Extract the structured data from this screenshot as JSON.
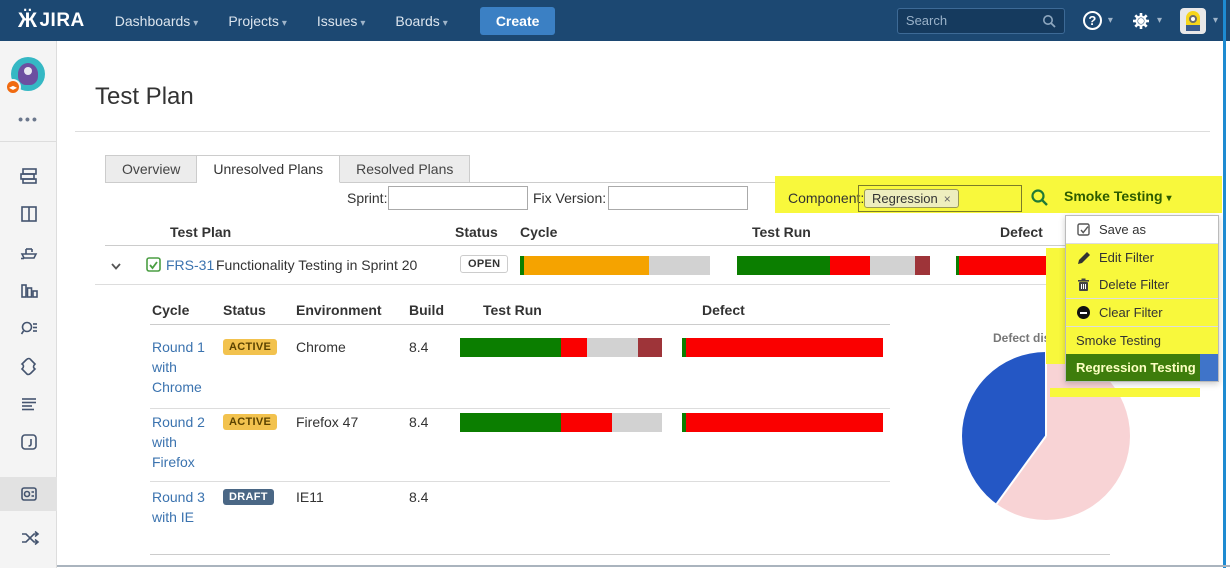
{
  "colors": {
    "nav_bg": "#1c4872",
    "create_btn": "#3b80c4",
    "link": "#3b73af",
    "highlight_yellow": "#f8f83c",
    "menu_selected_green": "#3e7d0c",
    "menu_selected_blue_remnant": "#3f74c9",
    "bar_green": "#0b7e00",
    "bar_red": "#fa0000",
    "bar_gray": "#d2d2d2",
    "bar_maroon": "#9e3439",
    "bar_orange": "#f5a300",
    "pie_blue": "#2457c5",
    "pie_pink": "#f8d3d5",
    "badge_active_bg": "#f2c24e",
    "badge_draft_bg": "#4a6785"
  },
  "topnav": {
    "logo_text": "JIRA",
    "menu": [
      {
        "label": "Dashboards"
      },
      {
        "label": "Projects"
      },
      {
        "label": "Issues"
      },
      {
        "label": "Boards"
      }
    ],
    "create_label": "Create",
    "search_placeholder": "Search"
  },
  "sidebar": {
    "icon_names": [
      "project-avatar",
      "more-ellipsis",
      "backlog",
      "board",
      "releases",
      "reports",
      "issues-search",
      "add-ons",
      "list",
      "pages",
      "test-sessions-selected",
      "shuffle",
      "media"
    ]
  },
  "page": {
    "title": "Test Plan"
  },
  "tabs": [
    {
      "label": "Overview",
      "active": false
    },
    {
      "label": "Unresolved Plans",
      "active": true
    },
    {
      "label": "Resolved Plans",
      "active": false
    }
  ],
  "filters": {
    "sprint_label": "Sprint:",
    "sprint_value": "",
    "fix_version_label": "Fix Version:",
    "fix_version_value": "",
    "component_label": "Component:",
    "component_tag": "Regression",
    "component_tag_remove": "×",
    "dropdown_button_label": "Smoke Testing"
  },
  "plan_table": {
    "headers": [
      "Test Plan",
      "Status",
      "Cycle",
      "Test Run",
      "Defect"
    ],
    "row": {
      "key": "FRS-31",
      "summary": "Functionality Testing in Sprint 20",
      "status": "OPEN",
      "cycle_bar": [
        {
          "color": "#0b7e00",
          "pct": 2
        },
        {
          "color": "#f5a300",
          "pct": 66
        },
        {
          "color": "#d2d2d2",
          "pct": 32
        }
      ],
      "test_run_bar": [
        {
          "color": "#0b7e00",
          "pct": 48
        },
        {
          "color": "#fa0000",
          "pct": 21
        },
        {
          "color": "#d2d2d2",
          "pct": 23
        },
        {
          "color": "#9e3439",
          "pct": 8
        }
      ],
      "defect_bar": [
        {
          "color": "#0b7e00",
          "pct": 2
        },
        {
          "color": "#fa0000",
          "pct": 98
        }
      ]
    }
  },
  "cycle_table": {
    "headers": [
      "Cycle",
      "Status",
      "Environment",
      "Build",
      "Test Run",
      "Defect"
    ],
    "rows": [
      {
        "cycle": "Round 1 with Chrome",
        "status": "ACTIVE",
        "environment": "Chrome",
        "build": "8.4",
        "test_run_bar": [
          {
            "color": "#0b7e00",
            "pct": 50
          },
          {
            "color": "#fa0000",
            "pct": 13
          },
          {
            "color": "#d2d2d2",
            "pct": 25
          },
          {
            "color": "#9e3439",
            "pct": 12
          }
        ],
        "defect_bar": [
          {
            "color": "#0b7e00",
            "pct": 2
          },
          {
            "color": "#fa0000",
            "pct": 98
          }
        ]
      },
      {
        "cycle": "Round 2 with Firefox",
        "status": "ACTIVE",
        "environment": "Firefox 47",
        "build": "8.4",
        "test_run_bar": [
          {
            "color": "#0b7e00",
            "pct": 50
          },
          {
            "color": "#fa0000",
            "pct": 25
          },
          {
            "color": "#d2d2d2",
            "pct": 25
          }
        ],
        "defect_bar": [
          {
            "color": "#0b7e00",
            "pct": 2
          },
          {
            "color": "#fa0000",
            "pct": 98
          }
        ]
      },
      {
        "cycle": "Round 3 with IE",
        "status": "DRAFT",
        "environment": "IE11",
        "build": "8.4",
        "test_run_bar": [],
        "defect_bar": []
      }
    ]
  },
  "filter_menu": {
    "items": [
      {
        "label": "Save as",
        "icon": "checkbox"
      },
      {
        "label": "Edit Filter",
        "icon": "pencil"
      },
      {
        "label": "Delete Filter",
        "icon": "trash"
      },
      {
        "label": "Clear Filter",
        "icon": "minus-circle"
      },
      {
        "label": "Smoke Testing",
        "icon": ""
      },
      {
        "label": "Regression Testing",
        "icon": "",
        "selected": true
      }
    ]
  },
  "chart_data": {
    "type": "pie",
    "title": "Defect distribution",
    "slices_clockwise_from_top": [
      {
        "label": "",
        "value": 60,
        "color": "#f8d3d5"
      },
      {
        "label": "",
        "value": 40,
        "color": "#2457c5"
      }
    ],
    "legend": false
  }
}
